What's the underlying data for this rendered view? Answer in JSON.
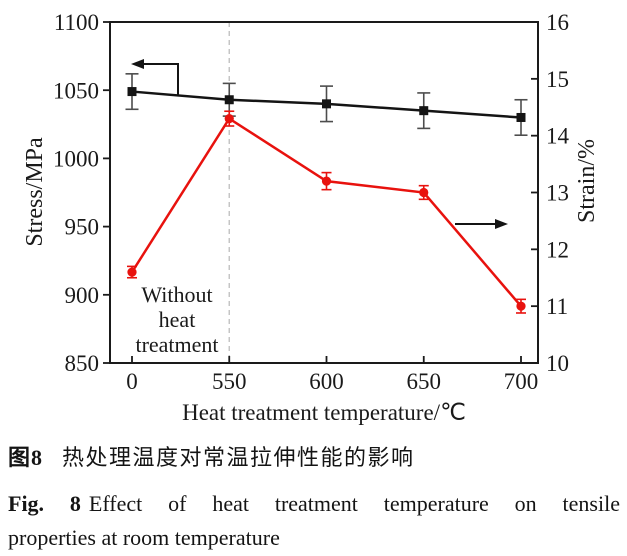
{
  "figure": {
    "caption_zh": {
      "label": "图8",
      "text": "热处理温度对常温拉伸性能的影响"
    },
    "caption_en": {
      "label": "Fig. 8",
      "line1_rest": "Effect of heat treatment temperature on tensile",
      "line2": "properties at room temperature"
    }
  },
  "chart_data": {
    "type": "line",
    "title": "",
    "xlabel": "Heat treatment temperature/℃",
    "categories": [
      0,
      550,
      600,
      650,
      700
    ],
    "x_tick_labels": [
      "0",
      "550",
      "600",
      "650",
      "700"
    ],
    "left_axis": {
      "label": "Stress/MPa",
      "range": [
        850,
        1100
      ],
      "ticks": [
        1100,
        1050,
        1000,
        950,
        900,
        850
      ]
    },
    "right_axis": {
      "label": "Strain/%",
      "range": [
        10,
        16
      ],
      "ticks": [
        16,
        15,
        14,
        13,
        12,
        11,
        10
      ]
    },
    "grid": false,
    "legend": "none",
    "series": [
      {
        "name": "Stress",
        "axis": "left",
        "marker": "square",
        "color": "#141414",
        "error_color": "#4d4d4d",
        "values": [
          1049,
          1043,
          1040,
          1035,
          1030
        ],
        "errors": [
          13,
          12,
          13,
          13,
          13
        ]
      },
      {
        "name": "Strain",
        "axis": "right",
        "marker": "circle",
        "color": "#e8120e",
        "error_color": "#e8120e",
        "values": [
          11.6,
          14.3,
          13.2,
          13.0,
          11.0
        ],
        "errors": [
          0.1,
          0.13,
          0.15,
          0.12,
          0.12
        ]
      }
    ],
    "annotation": {
      "lines": [
        "Without",
        "heat",
        "treatment"
      ]
    },
    "dashed_guide_at_category": "550",
    "arrows": [
      {
        "direction": "left",
        "meaning": "points-to-stress-axis"
      },
      {
        "direction": "right",
        "meaning": "points-to-strain-axis"
      }
    ],
    "colors": {
      "dashed_guide": "#c2c2c2",
      "axis_box": "#1a1a1a",
      "text": "#1a1a1a"
    }
  }
}
